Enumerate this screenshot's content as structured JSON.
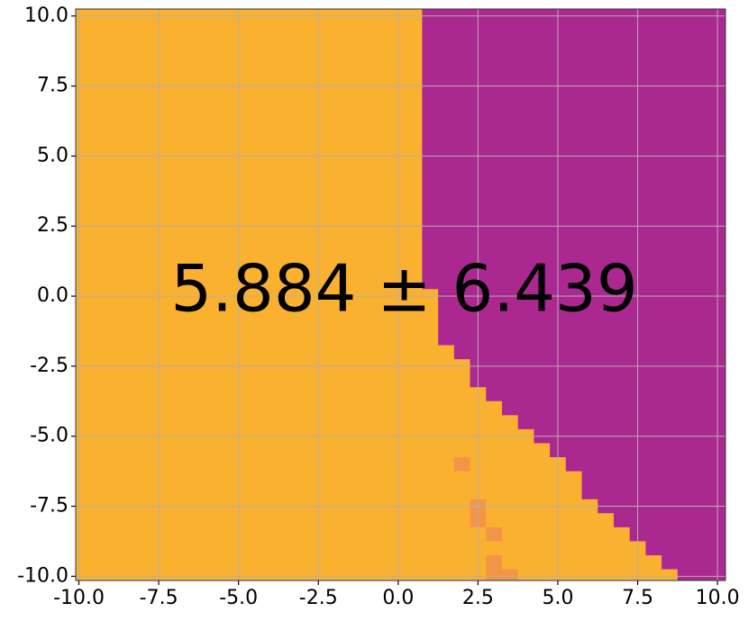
{
  "chart_data": {
    "type": "region",
    "annotation": "5.884 ± 6.439",
    "background_color": "#fbb130",
    "series": [
      {
        "color": "#ac2891",
        "x": [
          0.75,
          0.75,
          1.25,
          1.25,
          1.75,
          1.75,
          2.25,
          2.25,
          2.75,
          2.75,
          3.25,
          3.25,
          3.75,
          3.75,
          4.25,
          4.25,
          4.75,
          4.75,
          5.25,
          5.25,
          5.75,
          5.75,
          6.25,
          6.25,
          6.75,
          6.75,
          7.25,
          7.25,
          7.75,
          7.75,
          8.25,
          8.25,
          8.75,
          8.75,
          10.25,
          10.25
        ],
        "y": [
          10.25,
          0.25,
          0.25,
          -1.75,
          -1.75,
          -2.25,
          -2.25,
          -3.25,
          -3.25,
          -3.75,
          -3.75,
          -4.25,
          -4.25,
          -4.75,
          -4.75,
          -5.25,
          -5.25,
          -5.75,
          -5.75,
          -6.25,
          -6.25,
          -7.25,
          -7.25,
          -7.75,
          -7.75,
          -8.25,
          -8.25,
          -8.75,
          -8.75,
          -9.25,
          -9.25,
          -9.75,
          -9.75,
          -10.15,
          -10.15,
          10.25
        ]
      }
    ],
    "cells": {
      "color": "#f39447",
      "cell_size": 0.5,
      "x": [
        2.0,
        2.5,
        2.5,
        3.0,
        3.0,
        3.0,
        3.5
      ],
      "y": [
        -6.0,
        -7.5,
        -8.0,
        -8.5,
        -9.5,
        -10.0,
        -10.0
      ]
    },
    "xlim": [
      -10.1,
      10.25
    ],
    "ylim": [
      -10.15,
      10.25
    ],
    "xticks": [
      {
        "value": -10,
        "label": "-10.0"
      },
      {
        "value": -7.5,
        "label": "-7.5"
      },
      {
        "value": -5,
        "label": "-5.0"
      },
      {
        "value": -2.5,
        "label": "-2.5"
      },
      {
        "value": 0,
        "label": "0.0"
      },
      {
        "value": 2.5,
        "label": "2.5"
      },
      {
        "value": 5,
        "label": "5.0"
      },
      {
        "value": 7.5,
        "label": "7.5"
      },
      {
        "value": 10,
        "label": "10.0"
      }
    ],
    "yticks": [
      {
        "value": -10,
        "label": "-10.0"
      },
      {
        "value": -7.5,
        "label": "-7.5"
      },
      {
        "value": -5,
        "label": "-5.0"
      },
      {
        "value": -2.5,
        "label": "-2.5"
      },
      {
        "value": 0,
        "label": "0.0"
      },
      {
        "value": 2.5,
        "label": "2.5"
      },
      {
        "value": 5,
        "label": "5.0"
      },
      {
        "value": 7.5,
        "label": "7.5"
      },
      {
        "value": 10,
        "label": "10.0"
      }
    ],
    "grid": true
  }
}
